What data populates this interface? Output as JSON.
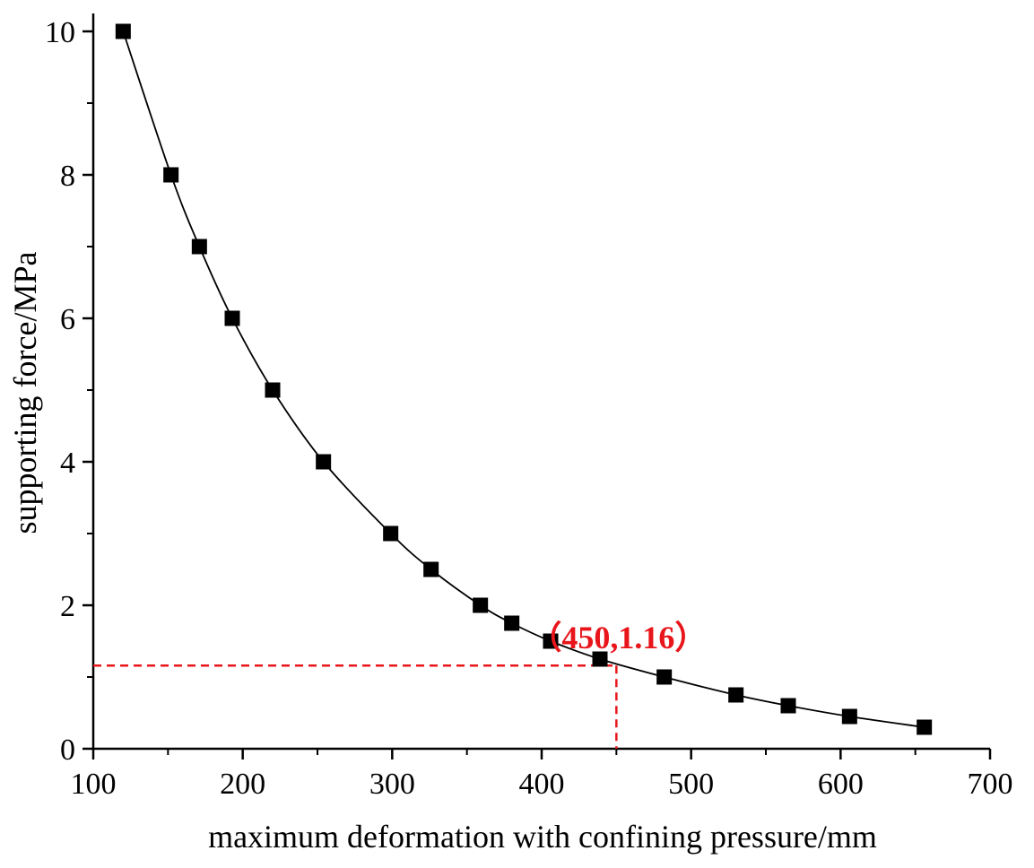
{
  "chart_data": {
    "type": "line",
    "title": "",
    "xlabel": "maximum deformation with confining pressure/mm",
    "ylabel": "supporting force/MPa",
    "xlim": [
      100,
      700
    ],
    "ylim": [
      0,
      10
    ],
    "x_ticks": [
      {
        "value": 100,
        "label": "100"
      },
      {
        "value": 200,
        "label": "200"
      },
      {
        "value": 300,
        "label": "300"
      },
      {
        "value": 400,
        "label": "400"
      },
      {
        "value": 500,
        "label": "500"
      },
      {
        "value": 600,
        "label": "600"
      },
      {
        "value": 700,
        "label": "700"
      }
    ],
    "y_ticks": [
      {
        "value": 0,
        "label": "0"
      },
      {
        "value": 2,
        "label": "2"
      },
      {
        "value": 4,
        "label": "4"
      },
      {
        "value": 6,
        "label": "6"
      },
      {
        "value": 8,
        "label": "8"
      },
      {
        "value": 10,
        "label": "10"
      }
    ],
    "series": [
      {
        "name": "supporting force",
        "color": "#000000",
        "marker": "square",
        "x": [
          120,
          152,
          171,
          193,
          220,
          254,
          299,
          326,
          359,
          380,
          406,
          439,
          482,
          530,
          565,
          606,
          656
        ],
        "y": [
          10,
          8,
          7,
          6,
          5,
          4,
          3,
          2.5,
          2,
          1.75,
          1.5,
          1.25,
          1,
          0.75,
          0.6,
          0.45,
          0.3
        ]
      }
    ],
    "annotations": [
      {
        "text": "（450,1.16）",
        "x": 450,
        "y": 1.16,
        "color": "#e8161b",
        "style": "dashed-crosshair"
      }
    ]
  }
}
